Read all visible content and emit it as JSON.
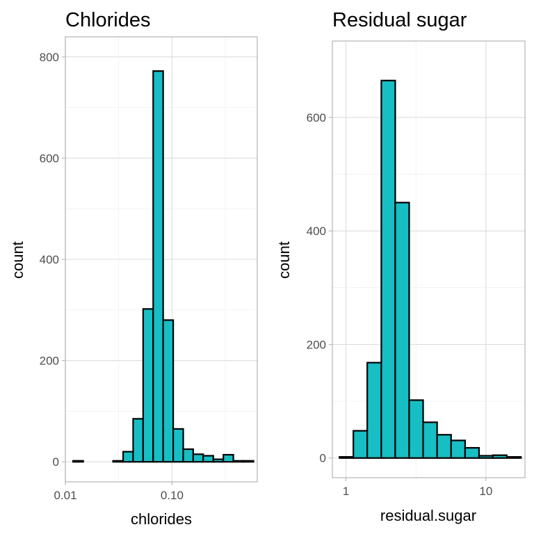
{
  "colors": {
    "fill": "#17BEC4",
    "stroke": "#000000"
  },
  "chart_data": [
    {
      "type": "bar",
      "title": "Chlorides",
      "xlabel": "chlorides",
      "ylabel": "count",
      "x_scale": "log10",
      "xlim": [
        0.01,
        0.63
      ],
      "ylim": [
        0,
        800
      ],
      "x_ticks": [
        0.01,
        0.1
      ],
      "x_tick_labels": [
        "0.01",
        "0.10"
      ],
      "y_ticks": [
        0,
        200,
        400,
        600,
        800
      ],
      "y_tick_labels": [
        "0",
        "200",
        "400",
        "600",
        "800"
      ],
      "grid": true,
      "bins": [
        {
          "x0": 0.0118,
          "x1": 0.0147,
          "count": 2
        },
        {
          "x0": 0.0147,
          "x1": 0.0182,
          "count": 0
        },
        {
          "x0": 0.0182,
          "x1": 0.0226,
          "count": 0
        },
        {
          "x0": 0.0226,
          "x1": 0.028,
          "count": 0
        },
        {
          "x0": 0.028,
          "x1": 0.0348,
          "count": 2
        },
        {
          "x0": 0.0348,
          "x1": 0.0432,
          "count": 20
        },
        {
          "x0": 0.0432,
          "x1": 0.0536,
          "count": 85
        },
        {
          "x0": 0.0536,
          "x1": 0.0666,
          "count": 302
        },
        {
          "x0": 0.0666,
          "x1": 0.0826,
          "count": 772
        },
        {
          "x0": 0.0826,
          "x1": 0.1026,
          "count": 280
        },
        {
          "x0": 0.1026,
          "x1": 0.1274,
          "count": 65
        },
        {
          "x0": 0.1274,
          "x1": 0.158,
          "count": 25
        },
        {
          "x0": 0.158,
          "x1": 0.196,
          "count": 15
        },
        {
          "x0": 0.196,
          "x1": 0.244,
          "count": 12
        },
        {
          "x0": 0.244,
          "x1": 0.303,
          "count": 5
        },
        {
          "x0": 0.303,
          "x1": 0.376,
          "count": 14
        },
        {
          "x0": 0.376,
          "x1": 0.467,
          "count": 2
        },
        {
          "x0": 0.467,
          "x1": 0.58,
          "count": 2
        }
      ]
    },
    {
      "type": "bar",
      "title": "Residual sugar",
      "xlabel": "residual.sugar",
      "ylabel": "count",
      "x_scale": "log10",
      "xlim": [
        0.8,
        19
      ],
      "ylim": [
        0,
        700
      ],
      "x_ticks": [
        1,
        10
      ],
      "x_tick_labels": [
        "1",
        "10"
      ],
      "y_ticks": [
        0,
        200,
        400,
        600
      ],
      "y_tick_labels": [
        "0",
        "200",
        "400",
        "600"
      ],
      "grid": true,
      "bins": [
        {
          "x0": 0.9,
          "x1": 1.13,
          "count": 2
        },
        {
          "x0": 1.13,
          "x1": 1.42,
          "count": 48
        },
        {
          "x0": 1.42,
          "x1": 1.79,
          "count": 168
        },
        {
          "x0": 1.79,
          "x1": 2.25,
          "count": 665
        },
        {
          "x0": 2.25,
          "x1": 2.83,
          "count": 450
        },
        {
          "x0": 2.83,
          "x1": 3.56,
          "count": 102
        },
        {
          "x0": 3.56,
          "x1": 4.48,
          "count": 63
        },
        {
          "x0": 4.48,
          "x1": 5.64,
          "count": 41
        },
        {
          "x0": 5.64,
          "x1": 7.1,
          "count": 31
        },
        {
          "x0": 7.1,
          "x1": 8.93,
          "count": 18
        },
        {
          "x0": 8.93,
          "x1": 11.2,
          "count": 4
        },
        {
          "x0": 11.2,
          "x1": 14.1,
          "count": 5
        },
        {
          "x0": 14.1,
          "x1": 17.8,
          "count": 2
        }
      ]
    }
  ]
}
